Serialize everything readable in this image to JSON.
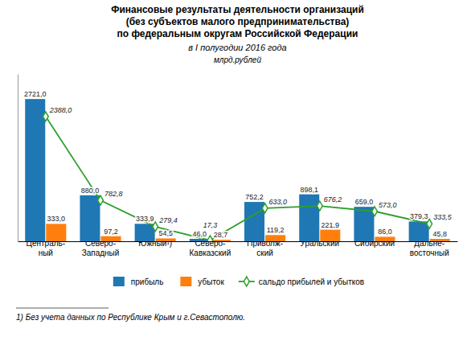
{
  "chart_data": {
    "type": "bar",
    "title": "Финансовые результаты деятельности организаций\n(без субъектов малого предпринимательства)\nпо федеральным округам Российской Федерации",
    "subtitle": "в I полугодии 2016 года",
    "annotations": [
      "млрд.рублей",
      "1) Без учета данных по Республике Крым и г.Севастополю."
    ],
    "categories": [
      "Централь-\nный",
      "Северо-\nЗападный",
      "Южный¹)",
      "Северо-\nКавказский",
      "Приволж-\nский",
      "Уральский",
      "Сибирский",
      "Дальне-\nвосточный"
    ],
    "series": [
      {
        "name": "прибыль",
        "values": [
          2721.0,
          880.0,
          333.9,
          46.0,
          752.2,
          898.1,
          659.0,
          379.3
        ],
        "value_labels": [
          "2721,0",
          "880,0",
          "333,9",
          "46,0",
          "752,2",
          "898,1",
          "659,0",
          "379,3"
        ]
      },
      {
        "name": "убыток",
        "values": [
          333.0,
          97.2,
          54.5,
          28.7,
          119.2,
          221.9,
          86.0,
          45.8
        ],
        "value_labels": [
          "333,0",
          "97,2",
          "54,5",
          "28,7",
          "119,2",
          "221,9",
          "86,0",
          "45,8"
        ]
      },
      {
        "name": "сальдо прибылей и убытков",
        "type": "line",
        "marker": "diamond",
        "values": [
          2388.0,
          782.8,
          279.4,
          17.3,
          633.0,
          676.2,
          573.0,
          333.5
        ],
        "value_labels": [
          "2388,0",
          "782,8",
          "279,4",
          "17,3",
          "633,0",
          "676,2",
          "573,0",
          "333,5"
        ]
      }
    ],
    "ylim": [
      0,
      3200
    ],
    "tick_labels": "x",
    "data_labels": true,
    "legend": "bottom",
    "grid": false
  }
}
